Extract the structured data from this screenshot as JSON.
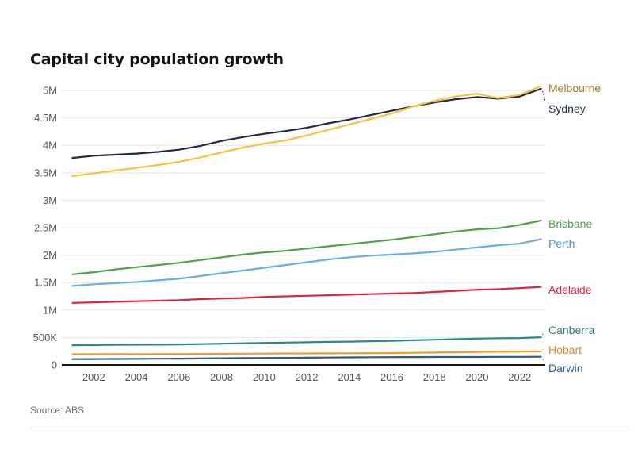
{
  "chart_data": {
    "type": "line",
    "title": "Capital city population growth",
    "source": "Source: ABS",
    "x": [
      2001,
      2002,
      2003,
      2004,
      2005,
      2006,
      2007,
      2008,
      2009,
      2010,
      2011,
      2012,
      2013,
      2014,
      2015,
      2016,
      2017,
      2018,
      2019,
      2020,
      2021,
      2022,
      2023
    ],
    "xlim": [
      2000.5,
      2023.2
    ],
    "x_ticks": [
      "2002",
      "2004",
      "2006",
      "2008",
      "2010",
      "2012",
      "2014",
      "2016",
      "2018",
      "2020",
      "2022"
    ],
    "ylim": [
      0,
      5000000
    ],
    "y_ticks": [
      {
        "value": 0,
        "label": "0"
      },
      {
        "value": 500000,
        "label": "500K"
      },
      {
        "value": 1000000,
        "label": "1M"
      },
      {
        "value": 1500000,
        "label": "1.5M"
      },
      {
        "value": 2000000,
        "label": "2M"
      },
      {
        "value": 2500000,
        "label": "2.5M"
      },
      {
        "value": 3000000,
        "label": "3M"
      },
      {
        "value": 3500000,
        "label": "3.5M"
      },
      {
        "value": 4000000,
        "label": "4M"
      },
      {
        "value": 4500000,
        "label": "4.5M"
      },
      {
        "value": 5000000,
        "label": "5M"
      }
    ],
    "grid": true,
    "legend": "direct labels at right end of lines",
    "series": [
      {
        "name": "Melbourne",
        "color": "#f5c342",
        "label_color": "#9c7a2a",
        "values": [
          3440000,
          3490000,
          3540000,
          3590000,
          3640000,
          3700000,
          3780000,
          3870000,
          3960000,
          4030000,
          4090000,
          4180000,
          4280000,
          4380000,
          4480000,
          4580000,
          4710000,
          4810000,
          4890000,
          4940000,
          4860000,
          4920000,
          5080000
        ]
      },
      {
        "name": "Sydney",
        "color": "#1f2a44",
        "label_color": "#1f2a44",
        "values": [
          3770000,
          3810000,
          3830000,
          3850000,
          3880000,
          3920000,
          3990000,
          4080000,
          4150000,
          4210000,
          4260000,
          4320000,
          4400000,
          4470000,
          4550000,
          4630000,
          4710000,
          4780000,
          4840000,
          4880000,
          4850000,
          4890000,
          5030000
        ]
      },
      {
        "name": "Brisbane",
        "color": "#4fa24a",
        "label_color": "#4fa24a",
        "values": [
          1650000,
          1690000,
          1740000,
          1780000,
          1820000,
          1860000,
          1910000,
          1960000,
          2010000,
          2050000,
          2080000,
          2120000,
          2160000,
          2200000,
          2240000,
          2280000,
          2330000,
          2380000,
          2430000,
          2470000,
          2490000,
          2550000,
          2630000
        ]
      },
      {
        "name": "Perth",
        "color": "#6aafdf",
        "label_color": "#4a8fc4",
        "values": [
          1440000,
          1470000,
          1490000,
          1510000,
          1540000,
          1570000,
          1620000,
          1670000,
          1720000,
          1770000,
          1820000,
          1870000,
          1920000,
          1960000,
          1990000,
          2010000,
          2030000,
          2060000,
          2100000,
          2140000,
          2180000,
          2210000,
          2290000
        ]
      },
      {
        "name": "Adelaide",
        "color": "#d8283f",
        "label_color": "#d8283f",
        "values": [
          1130000,
          1140000,
          1150000,
          1160000,
          1170000,
          1180000,
          1200000,
          1210000,
          1220000,
          1240000,
          1250000,
          1260000,
          1270000,
          1280000,
          1290000,
          1300000,
          1310000,
          1330000,
          1350000,
          1370000,
          1380000,
          1400000,
          1420000
        ]
      },
      {
        "name": "Canberra",
        "color": "#2a8a8a",
        "label_color": "#2a7f82",
        "values": [
          360000,
          362000,
          365000,
          368000,
          370000,
          374000,
          380000,
          388000,
          395000,
          402000,
          408000,
          414000,
          420000,
          425000,
          432000,
          440000,
          450000,
          460000,
          470000,
          480000,
          485000,
          490000,
          505000
        ]
      },
      {
        "name": "Hobart",
        "color": "#f39a2b",
        "label_color": "#d98a28",
        "values": [
          195000,
          196000,
          197000,
          198000,
          199000,
          200000,
          201000,
          203000,
          205000,
          207000,
          209000,
          210000,
          211000,
          213000,
          215000,
          217000,
          221000,
          226000,
          231000,
          237000,
          241000,
          243000,
          245000
        ]
      },
      {
        "name": "Darwin",
        "color": "#2b5a8c",
        "label_color": "#2b5a8c",
        "values": [
          106000,
          107000,
          108000,
          110000,
          112000,
          114000,
          117000,
          121000,
          124000,
          127000,
          129000,
          131000,
          134000,
          137000,
          140000,
          142000,
          143000,
          144000,
          144000,
          145000,
          147000,
          148000,
          149000
        ]
      }
    ]
  }
}
